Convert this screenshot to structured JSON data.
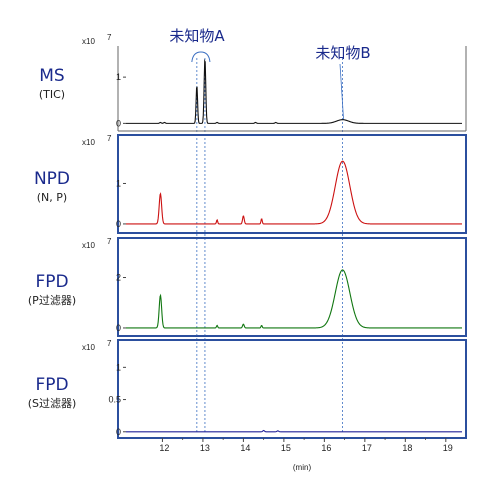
{
  "chart_data": {
    "type": "line",
    "xlabel": "(min)",
    "xlim": [
      11.1,
      19.4
    ],
    "x_ticks": [
      "12",
      "13",
      "14",
      "15",
      "16",
      "17",
      "18",
      "19"
    ],
    "annotations": [
      {
        "text": "未知物A",
        "x": [
          12.85,
          13.05
        ]
      },
      {
        "text": "未知物B",
        "x": [
          16.45
        ]
      }
    ],
    "panels": [
      {
        "detector": "MS",
        "subtitle": "(TIC)",
        "scale_label": "x10",
        "scale_exp": "7",
        "y_ticks": [
          "1",
          "0"
        ],
        "ylim": [
          -0.1,
          1.5
        ],
        "color": "#111111",
        "baseline": 0.0,
        "peaks": [
          {
            "rt": 11.95,
            "height": 0.02,
            "width": 0.02
          },
          {
            "rt": 12.05,
            "height": 0.02,
            "width": 0.02
          },
          {
            "rt": 12.85,
            "height": 0.82,
            "width": 0.018
          },
          {
            "rt": 13.05,
            "height": 1.4,
            "width": 0.02
          },
          {
            "rt": 13.35,
            "height": 0.02,
            "width": 0.02
          },
          {
            "rt": 14.3,
            "height": 0.02,
            "width": 0.02
          },
          {
            "rt": 14.8,
            "height": 0.02,
            "width": 0.02
          },
          {
            "rt": 16.45,
            "height": 0.08,
            "width": 0.15
          }
        ]
      },
      {
        "detector": "NPD",
        "subtitle": "(N, P)",
        "scale_label": "x10",
        "scale_exp": "7",
        "y_ticks": [
          "1",
          "0"
        ],
        "ylim": [
          -0.15,
          2.0
        ],
        "color": "#cc1111",
        "baseline": 0.0,
        "peaks": [
          {
            "rt": 11.95,
            "height": 0.75,
            "width": 0.03
          },
          {
            "rt": 13.35,
            "height": 0.1,
            "width": 0.015
          },
          {
            "rt": 14.0,
            "height": 0.2,
            "width": 0.02
          },
          {
            "rt": 14.45,
            "height": 0.13,
            "width": 0.015
          },
          {
            "rt": 16.45,
            "height": 1.55,
            "width": 0.18
          }
        ]
      },
      {
        "detector": "FPD",
        "subtitle": "(P过滤器)",
        "scale_label": "x10",
        "scale_exp": "7",
        "y_ticks": [
          "2",
          "0"
        ],
        "ylim": [
          -0.2,
          3.25
        ],
        "color": "#117711",
        "baseline": 0.0,
        "peaks": [
          {
            "rt": 11.95,
            "height": 1.3,
            "width": 0.03
          },
          {
            "rt": 13.35,
            "height": 0.1,
            "width": 0.015
          },
          {
            "rt": 14.0,
            "height": 0.15,
            "width": 0.02
          },
          {
            "rt": 14.45,
            "height": 0.1,
            "width": 0.015
          },
          {
            "rt": 16.45,
            "height": 2.3,
            "width": 0.18
          }
        ]
      },
      {
        "detector": "FPD",
        "subtitle": "(S过滤器)",
        "scale_label": "x10",
        "scale_exp": "7",
        "y_ticks": [
          "1",
          "0.5",
          "0"
        ],
        "ylim": [
          -0.05,
          1.3
        ],
        "color": "#222299",
        "baseline": 0.0,
        "peaks": [
          {
            "rt": 14.5,
            "height": 0.02,
            "width": 0.02
          },
          {
            "rt": 14.85,
            "height": 0.015,
            "width": 0.02
          }
        ]
      }
    ]
  }
}
